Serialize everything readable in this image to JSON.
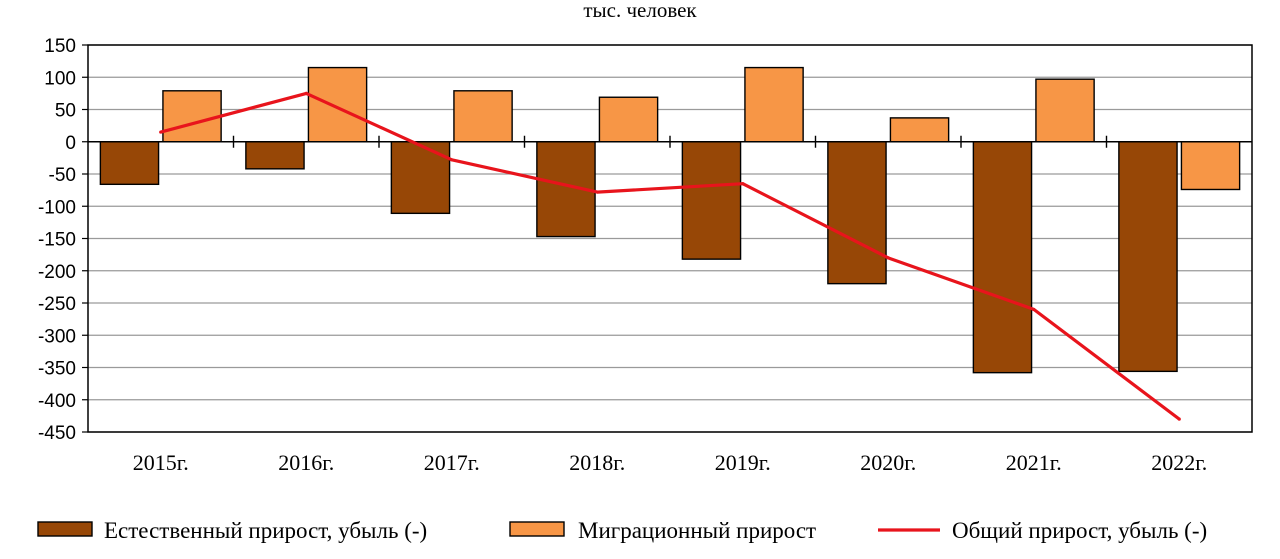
{
  "chart_data": {
    "type": "bar",
    "title": "тыс. человек",
    "categories": [
      "2015г.",
      "2016г.",
      "2017г.",
      "2018г.",
      "2019г.",
      "2020г.",
      "2021г.",
      "2022г."
    ],
    "series": [
      {
        "name": "Естественный прирост, убыль (-)",
        "type": "bar",
        "color": "#974706",
        "values": [
          -66,
          -42,
          -111,
          -147,
          -182,
          -220,
          -358,
          -356
        ]
      },
      {
        "name": "Миграционный прирост",
        "type": "bar",
        "color": "#F79646",
        "values": [
          79,
          115,
          79,
          69,
          115,
          37,
          97,
          -74
        ]
      },
      {
        "name": "Общий прирост, убыль (-)",
        "type": "line",
        "color": "#E8141C",
        "values": [
          15,
          75,
          -28,
          -78,
          -65,
          -180,
          -260,
          -430
        ]
      }
    ],
    "yticks": [
      "150",
      "100",
      "50",
      "0",
      "-50",
      "-100",
      "-150",
      "-200",
      "-250",
      "-300",
      "-350",
      "-400",
      "-450"
    ],
    "ylim": [
      -450,
      150
    ],
    "ytick_step": 50,
    "grid": true,
    "legend_position": "bottom"
  }
}
